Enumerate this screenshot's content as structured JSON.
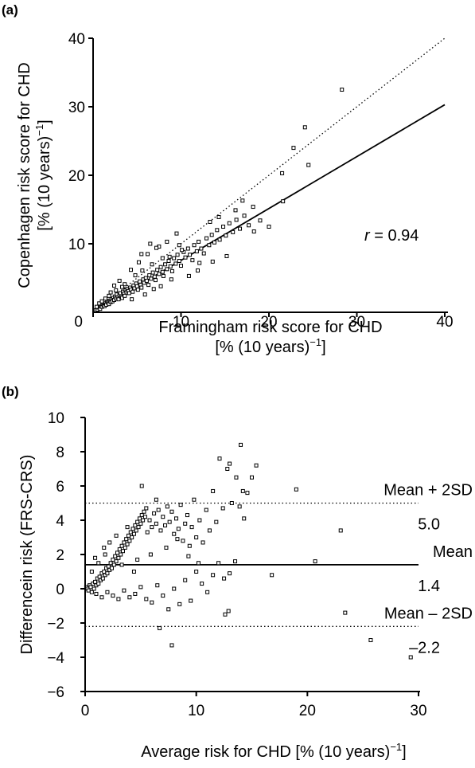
{
  "chart_data": [
    {
      "type": "scatter",
      "panel_label": "(a)",
      "xlabel": "Framingham risk score for CHD",
      "xlabel_line2": "[% (10 years)",
      "ylabel": "Copenhagen risk score for CHD",
      "ylabel_line2": "[% (10 years)",
      "unit_exponent": "−1",
      "unit_close": "]",
      "xlim": [
        0,
        40
      ],
      "ylim": [
        0,
        40
      ],
      "xticks": [
        0,
        10,
        20,
        30,
        40
      ],
      "yticks": [
        10,
        20,
        30,
        40
      ],
      "origin_label": "0",
      "annotation": {
        "italic": "r",
        "text": " = 0.94"
      },
      "lines": [
        {
          "style": "dotted",
          "points": [
            [
              0,
              0
            ],
            [
              40,
              40
            ]
          ]
        },
        {
          "style": "solid",
          "points": [
            [
              0,
              0
            ],
            [
              40,
              30.3
            ]
          ]
        }
      ],
      "points": [
        [
          0.3,
          0.3
        ],
        [
          0.5,
          0.4
        ],
        [
          0.6,
          0.7
        ],
        [
          0.8,
          0.5
        ],
        [
          0.9,
          0.9
        ],
        [
          1.0,
          0.8
        ],
        [
          1.1,
          1.2
        ],
        [
          1.2,
          1.0
        ],
        [
          1.3,
          0.9
        ],
        [
          1.4,
          1.3
        ],
        [
          1.5,
          1.1
        ],
        [
          1.6,
          1.6
        ],
        [
          1.7,
          1.4
        ],
        [
          1.8,
          1.2
        ],
        [
          1.9,
          1.7
        ],
        [
          2.0,
          1.5
        ],
        [
          2.1,
          1.9
        ],
        [
          2.2,
          1.6
        ],
        [
          2.3,
          2.1
        ],
        [
          2.4,
          1.8
        ],
        [
          2.5,
          2.3
        ],
        [
          2.6,
          2.0
        ],
        [
          2.7,
          2.6
        ],
        [
          2.8,
          2.2
        ],
        [
          2.9,
          1.9
        ],
        [
          3.0,
          2.5
        ],
        [
          3.1,
          2.8
        ],
        [
          3.2,
          2.3
        ],
        [
          3.3,
          2.1
        ],
        [
          3.4,
          3.0
        ],
        [
          3.5,
          2.7
        ],
        [
          3.6,
          2.4
        ],
        [
          3.7,
          3.2
        ],
        [
          3.8,
          2.9
        ],
        [
          3.9,
          3.4
        ],
        [
          4.0,
          3.1
        ],
        [
          4.1,
          2.8
        ],
        [
          4.2,
          3.6
        ],
        [
          4.3,
          3.3
        ],
        [
          4.5,
          3.0
        ],
        [
          4.6,
          3.9
        ],
        [
          4.7,
          3.5
        ],
        [
          4.9,
          4.2
        ],
        [
          5.0,
          3.8
        ],
        [
          5.1,
          3.3
        ],
        [
          5.3,
          4.5
        ],
        [
          5.4,
          4.0
        ],
        [
          5.5,
          3.6
        ],
        [
          5.7,
          4.8
        ],
        [
          5.8,
          4.3
        ],
        [
          6.0,
          5.0
        ],
        [
          6.1,
          4.6
        ],
        [
          6.3,
          4.0
        ],
        [
          6.4,
          5.4
        ],
        [
          6.6,
          4.9
        ],
        [
          6.8,
          5.8
        ],
        [
          7.0,
          5.2
        ],
        [
          7.1,
          4.7
        ],
        [
          7.3,
          6.2
        ],
        [
          7.5,
          5.6
        ],
        [
          7.7,
          6.6
        ],
        [
          7.9,
          5.9
        ],
        [
          8.0,
          5.3
        ],
        [
          8.2,
          7.0
        ],
        [
          8.4,
          6.3
        ],
        [
          8.6,
          7.5
        ],
        [
          8.8,
          6.7
        ],
        [
          9.0,
          6.0
        ],
        [
          9.2,
          7.9
        ],
        [
          9.4,
          7.1
        ],
        [
          9.6,
          8.4
        ],
        [
          9.8,
          7.5
        ],
        [
          10.0,
          6.8
        ],
        [
          10.3,
          8.8
        ],
        [
          10.5,
          8.0
        ],
        [
          10.8,
          9.3
        ],
        [
          11.0,
          8.4
        ],
        [
          11.3,
          7.6
        ],
        [
          11.5,
          9.8
        ],
        [
          11.8,
          8.9
        ],
        [
          12.0,
          10.3
        ],
        [
          12.3,
          9.3
        ],
        [
          12.6,
          8.6
        ],
        [
          12.9,
          10.8
        ],
        [
          13.2,
          9.8
        ],
        [
          13.5,
          11.3
        ],
        [
          13.8,
          10.2
        ],
        [
          14.1,
          12.0
        ],
        [
          14.4,
          10.6
        ],
        [
          14.8,
          12.5
        ],
        [
          15.1,
          11.2
        ],
        [
          15.5,
          13.0
        ],
        [
          15.9,
          11.7
        ],
        [
          16.3,
          13.5
        ],
        [
          16.7,
          12.2
        ],
        [
          17.2,
          14.1
        ],
        [
          17.7,
          12.7
        ],
        [
          18.3,
          11.8
        ],
        [
          19.0,
          13.4
        ],
        [
          20.0,
          12.5
        ],
        [
          4.3,
          6.2
        ],
        [
          5.2,
          7.3
        ],
        [
          6.2,
          8.5
        ],
        [
          7.5,
          9.6
        ],
        [
          8.4,
          10.3
        ],
        [
          9.5,
          11.5
        ],
        [
          3.0,
          4.6
        ],
        [
          2.4,
          3.9
        ],
        [
          6.9,
          3.4
        ],
        [
          8.9,
          4.8
        ],
        [
          11.9,
          6.1
        ],
        [
          10.9,
          5.3
        ],
        [
          13.6,
          7.4
        ],
        [
          15.2,
          8.2
        ],
        [
          7.7,
          3.8
        ],
        [
          5.9,
          2.6
        ],
        [
          4.4,
          1.9
        ],
        [
          16.2,
          14.9
        ],
        [
          17.0,
          16.3
        ],
        [
          18.2,
          15.4
        ],
        [
          14.3,
          13.9
        ],
        [
          13.3,
          13.2
        ],
        [
          21.6,
          16.2
        ],
        [
          22.8,
          24.0
        ],
        [
          21.5,
          20.3
        ],
        [
          24.1,
          27.0
        ],
        [
          24.5,
          21.5
        ],
        [
          28.3,
          32.5
        ],
        [
          6.5,
          10.0
        ],
        [
          5.5,
          8.5
        ],
        [
          7.2,
          9.4
        ],
        [
          9.8,
          9.8
        ],
        [
          12.1,
          7.2
        ],
        [
          3.6,
          4.1
        ],
        [
          2.0,
          2.9
        ],
        [
          1.4,
          2.0
        ],
        [
          0.7,
          1.3
        ],
        [
          0.4,
          0.8
        ],
        [
          1.0,
          1.6
        ],
        [
          1.8,
          2.4
        ],
        [
          2.6,
          3.2
        ],
        [
          3.3,
          3.7
        ],
        [
          4.8,
          5.4
        ],
        [
          5.6,
          6.1
        ],
        [
          6.7,
          7.0
        ],
        [
          7.9,
          7.9
        ],
        [
          8.7,
          8.1
        ],
        [
          10.1,
          9.1
        ]
      ]
    },
    {
      "type": "scatter",
      "panel_label": "(b)",
      "xlabel": "Average risk for CHD [% (10 years)",
      "ylabel": "Differencein risk (FRS-CRS)",
      "unit_exponent": "−1",
      "unit_close": "]",
      "xlim": [
        0,
        30
      ],
      "ylim": [
        -6,
        10
      ],
      "xticks": [
        0,
        10,
        20,
        30
      ],
      "yticks": [
        -6,
        -4,
        -2,
        0,
        2,
        4,
        6,
        8,
        10
      ],
      "ytick_labels": [
        "−6",
        "−4",
        "−2",
        "0",
        "2",
        "4",
        "6",
        "8",
        "10"
      ],
      "reference_lines": [
        {
          "style": "dotted",
          "y": 5.0,
          "label": "Mean + 2SD",
          "value_label": "5.0"
        },
        {
          "style": "solid",
          "y": 1.4,
          "label": "Mean",
          "value_label": "1.4"
        },
        {
          "style": "dotted",
          "y": -2.2,
          "label": "Mean –  2SD",
          "value_label": "–2.2"
        }
      ],
      "points": [
        [
          0.1,
          0.1
        ],
        [
          0.2,
          0.0
        ],
        [
          0.3,
          -0.1
        ],
        [
          0.4,
          0.2
        ],
        [
          0.5,
          0.1
        ],
        [
          0.6,
          -0.2
        ],
        [
          0.7,
          0.3
        ],
        [
          0.8,
          0.0
        ],
        [
          0.9,
          0.4
        ],
        [
          1.0,
          0.2
        ],
        [
          1.1,
          0.6
        ],
        [
          1.2,
          0.3
        ],
        [
          1.3,
          0.7
        ],
        [
          1.4,
          0.5
        ],
        [
          1.5,
          0.9
        ],
        [
          1.6,
          0.6
        ],
        [
          1.7,
          1.0
        ],
        [
          1.8,
          0.8
        ],
        [
          1.9,
          1.2
        ],
        [
          2.0,
          0.9
        ],
        [
          2.1,
          1.3
        ],
        [
          2.2,
          1.1
        ],
        [
          2.3,
          1.5
        ],
        [
          2.4,
          1.2
        ],
        [
          2.5,
          1.7
        ],
        [
          2.6,
          1.4
        ],
        [
          2.7,
          1.9
        ],
        [
          2.8,
          1.6
        ],
        [
          2.9,
          2.1
        ],
        [
          3.0,
          1.8
        ],
        [
          3.1,
          2.3
        ],
        [
          3.2,
          2.0
        ],
        [
          3.3,
          2.5
        ],
        [
          3.4,
          2.2
        ],
        [
          3.5,
          2.7
        ],
        [
          3.6,
          2.4
        ],
        [
          3.7,
          2.9
        ],
        [
          3.8,
          2.6
        ],
        [
          3.9,
          3.1
        ],
        [
          4.0,
          2.8
        ],
        [
          4.1,
          3.3
        ],
        [
          4.2,
          3.0
        ],
        [
          4.3,
          3.5
        ],
        [
          4.4,
          3.2
        ],
        [
          4.5,
          3.7
        ],
        [
          4.6,
          3.4
        ],
        [
          4.7,
          3.9
        ],
        [
          4.8,
          3.6
        ],
        [
          4.9,
          4.1
        ],
        [
          5.0,
          3.8
        ],
        [
          5.1,
          4.3
        ],
        [
          5.2,
          4.0
        ],
        [
          5.3,
          4.5
        ],
        [
          5.4,
          4.2
        ],
        [
          5.5,
          4.7
        ],
        [
          5.6,
          3.3
        ],
        [
          5.8,
          4.0
        ],
        [
          6.0,
          3.6
        ],
        [
          6.2,
          4.4
        ],
        [
          6.4,
          3.8
        ],
        [
          6.6,
          4.6
        ],
        [
          6.8,
          3.4
        ],
        [
          7.0,
          4.2
        ],
        [
          7.2,
          3.7
        ],
        [
          7.4,
          4.8
        ],
        [
          7.6,
          3.9
        ],
        [
          7.8,
          4.5
        ],
        [
          8.0,
          3.2
        ],
        [
          8.2,
          4.1
        ],
        [
          8.4,
          3.5
        ],
        [
          8.6,
          4.9
        ],
        [
          8.8,
          2.8
        ],
        [
          9.0,
          3.8
        ],
        [
          9.2,
          4.3
        ],
        [
          9.4,
          2.5
        ],
        [
          9.6,
          3.6
        ],
        [
          9.8,
          5.2
        ],
        [
          10.0,
          3.0
        ],
        [
          10.3,
          4.0
        ],
        [
          10.6,
          2.7
        ],
        [
          10.9,
          4.6
        ],
        [
          11.2,
          3.4
        ],
        [
          11.5,
          5.7
        ],
        [
          11.8,
          3.9
        ],
        [
          12.1,
          7.6
        ],
        [
          12.4,
          4.7
        ],
        [
          12.8,
          7.0
        ],
        [
          13.2,
          5.0
        ],
        [
          13.6,
          6.5
        ],
        [
          14.0,
          8.4
        ],
        [
          14.3,
          4.1
        ],
        [
          14.6,
          5.6
        ],
        [
          15.0,
          6.5
        ],
        [
          15.4,
          7.2
        ],
        [
          13.0,
          7.3
        ],
        [
          14.2,
          5.7
        ],
        [
          13.9,
          4.8
        ],
        [
          1.0,
          -0.3
        ],
        [
          1.5,
          -0.5
        ],
        [
          2.0,
          -0.2
        ],
        [
          2.5,
          -0.4
        ],
        [
          3.0,
          -0.6
        ],
        [
          3.5,
          -0.1
        ],
        [
          4.0,
          -0.5
        ],
        [
          4.5,
          -0.3
        ],
        [
          5.0,
          0.1
        ],
        [
          5.5,
          -0.6
        ],
        [
          6.0,
          -0.8
        ],
        [
          6.5,
          0.2
        ],
        [
          7.0,
          -0.4
        ],
        [
          7.5,
          -1.2
        ],
        [
          8.0,
          0.0
        ],
        [
          8.5,
          -0.9
        ],
        [
          9.0,
          0.5
        ],
        [
          9.5,
          -0.7
        ],
        [
          10.0,
          1.0
        ],
        [
          10.5,
          0.3
        ],
        [
          11.0,
          -0.2
        ],
        [
          11.5,
          0.8
        ],
        [
          12.0,
          1.5
        ],
        [
          12.5,
          0.6
        ],
        [
          13.0,
          0.9
        ],
        [
          13.5,
          1.6
        ],
        [
          12.6,
          -1.5
        ],
        [
          12.9,
          -1.3
        ],
        [
          6.7,
          -2.3
        ],
        [
          7.8,
          -3.3
        ],
        [
          16.8,
          0.8
        ],
        [
          20.7,
          1.6
        ],
        [
          19.0,
          5.8
        ],
        [
          23.0,
          3.4
        ],
        [
          23.4,
          -1.4
        ],
        [
          25.7,
          -3.0
        ],
        [
          29.3,
          -4.0
        ],
        [
          5.1,
          6.0
        ],
        [
          6.4,
          5.2
        ],
        [
          3.8,
          3.6
        ],
        [
          2.8,
          3.1
        ],
        [
          1.8,
          2.0
        ],
        [
          2.2,
          2.7
        ],
        [
          4.7,
          1.7
        ],
        [
          5.9,
          2.0
        ],
        [
          7.3,
          2.4
        ],
        [
          8.3,
          2.9
        ],
        [
          9.3,
          1.9
        ],
        [
          10.2,
          1.5
        ],
        [
          3.3,
          1.4
        ],
        [
          4.4,
          1.0
        ],
        [
          0.6,
          1.0
        ],
        [
          1.2,
          1.5
        ],
        [
          0.9,
          1.8
        ],
        [
          1.7,
          2.4
        ]
      ]
    }
  ]
}
